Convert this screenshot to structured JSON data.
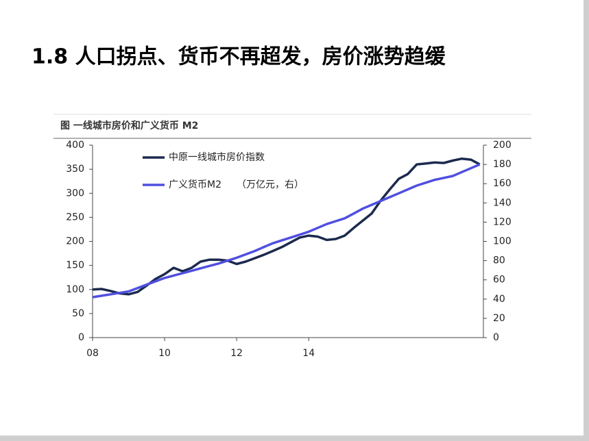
{
  "heading": "1.8  人口拐点、货币不再超发，房价涨势趋缓",
  "chart_data": {
    "type": "line",
    "title": "图   一线城市房价和广义货币 M2",
    "annotation": "（万亿元，右）",
    "x": [
      2008,
      2008.25,
      2008.5,
      2008.75,
      2009,
      2009.25,
      2009.5,
      2009.75,
      2010,
      2010.25,
      2010.5,
      2010.75,
      2011,
      2011.25,
      2011.5,
      2011.75,
      2012,
      2012.25,
      2012.5,
      2012.75,
      2013,
      2013.25,
      2013.5,
      2013.75,
      2014,
      2014.25,
      2014.5,
      2014.75,
      2015,
      2015.25,
      2015.5,
      2015.75,
      2016,
      2016.25,
      2016.5,
      2016.75,
      2017,
      2017.25,
      2017.5,
      2017.75,
      2018,
      2018.25,
      2018.5,
      2018.75
    ],
    "series": [
      {
        "name": "中原一线城市房价指数",
        "color": "#1b2a4e",
        "values": [
          100,
          101,
          97,
          92,
          90,
          95,
          108,
          122,
          132,
          145,
          138,
          145,
          158,
          162,
          162,
          160,
          153,
          158,
          165,
          172,
          180,
          188,
          198,
          208,
          212,
          210,
          203,
          205,
          212,
          228,
          243,
          258,
          285,
          308,
          330,
          340,
          360,
          362,
          364,
          363,
          368,
          372,
          370,
          360
        ]
      },
      {
        "name": "广义货币M2",
        "color": "#4f4fe0",
        "axis": "y2",
        "values": [
          42,
          43.5,
          45,
          46.5,
          48,
          51.5,
          55,
          58.5,
          62,
          64.5,
          67,
          69.5,
          72,
          74.5,
          77,
          80,
          83,
          86.5,
          90,
          94,
          98,
          101,
          104,
          107,
          110,
          114,
          118,
          121,
          124,
          129,
          134,
          138,
          142,
          146,
          150,
          154,
          158,
          161,
          164,
          166,
          168,
          172,
          176,
          180
        ]
      }
    ],
    "xlim": [
      2008,
      2018.85
    ],
    "xticks": [
      {
        "value": 2008,
        "label": "08"
      },
      {
        "value": 2010,
        "label": "10"
      },
      {
        "value": 2012,
        "label": "12"
      },
      {
        "value": 2014,
        "label": "14"
      }
    ],
    "ylim": [
      0,
      400
    ],
    "yticks": [
      0,
      50,
      100,
      150,
      200,
      250,
      300,
      350,
      400
    ],
    "y2lim": [
      0,
      200
    ],
    "y2ticks": [
      0,
      20,
      40,
      60,
      80,
      100,
      120,
      140,
      160,
      180,
      200
    ],
    "grid": false
  }
}
